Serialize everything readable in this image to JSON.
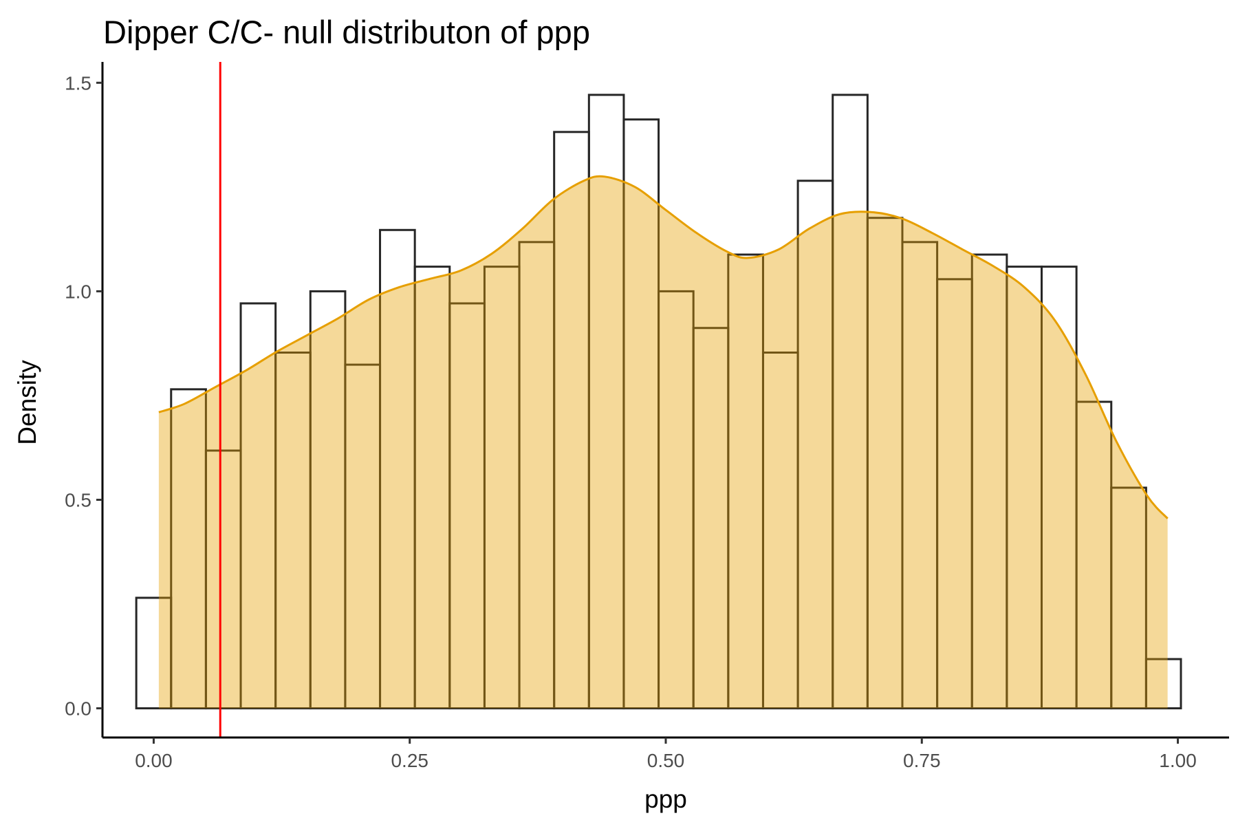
{
  "chart_data": {
    "type": "histogram",
    "title": "Dipper C/C- null distributon of ppp",
    "xlabel": "ppp",
    "ylabel": "Density",
    "xlim": [
      -0.05,
      1.05
    ],
    "ylim": [
      -0.07,
      1.55
    ],
    "x_ticks": [
      0.0,
      0.25,
      0.5,
      0.75,
      1.0
    ],
    "x_tick_labels": [
      "0.00",
      "0.25",
      "0.50",
      "0.75",
      "1.00"
    ],
    "y_ticks": [
      0.0,
      0.5,
      1.0,
      1.5
    ],
    "y_tick_labels": [
      "0.0",
      "0.5",
      "1.0",
      "1.5"
    ],
    "grid": false,
    "legend": "none",
    "histogram": {
      "bin_start": -0.017,
      "bin_width": 0.034,
      "densities": [
        0.265,
        0.765,
        0.618,
        0.971,
        0.853,
        1.0,
        0.824,
        1.147,
        1.059,
        0.971,
        1.059,
        1.118,
        1.382,
        1.471,
        1.412,
        1.0,
        0.912,
        1.088,
        0.853,
        1.265,
        1.471,
        1.176,
        1.118,
        1.029,
        1.088,
        1.059,
        1.059,
        0.735,
        0.529,
        0.118
      ],
      "outline_color": "#262626"
    },
    "density_curve": {
      "x": [
        0.005,
        0.03,
        0.06,
        0.09,
        0.12,
        0.15,
        0.18,
        0.21,
        0.24,
        0.27,
        0.3,
        0.33,
        0.36,
        0.39,
        0.42,
        0.44,
        0.47,
        0.5,
        0.53,
        0.56,
        0.58,
        0.61,
        0.64,
        0.67,
        0.7,
        0.73,
        0.76,
        0.79,
        0.82,
        0.85,
        0.88,
        0.91,
        0.94,
        0.97,
        0.99
      ],
      "y": [
        0.71,
        0.73,
        0.77,
        0.81,
        0.855,
        0.895,
        0.935,
        0.98,
        1.01,
        1.03,
        1.05,
        1.09,
        1.15,
        1.22,
        1.265,
        1.275,
        1.25,
        1.195,
        1.14,
        1.095,
        1.08,
        1.1,
        1.15,
        1.185,
        1.19,
        1.175,
        1.14,
        1.1,
        1.06,
        1.01,
        0.93,
        0.8,
        0.64,
        0.51,
        0.455
      ],
      "line_color": "#E69F00",
      "fill_color": "#E69F00",
      "fill_opacity": 0.4
    },
    "reference_line": {
      "x": 0.065,
      "color": "#FF0000"
    }
  }
}
